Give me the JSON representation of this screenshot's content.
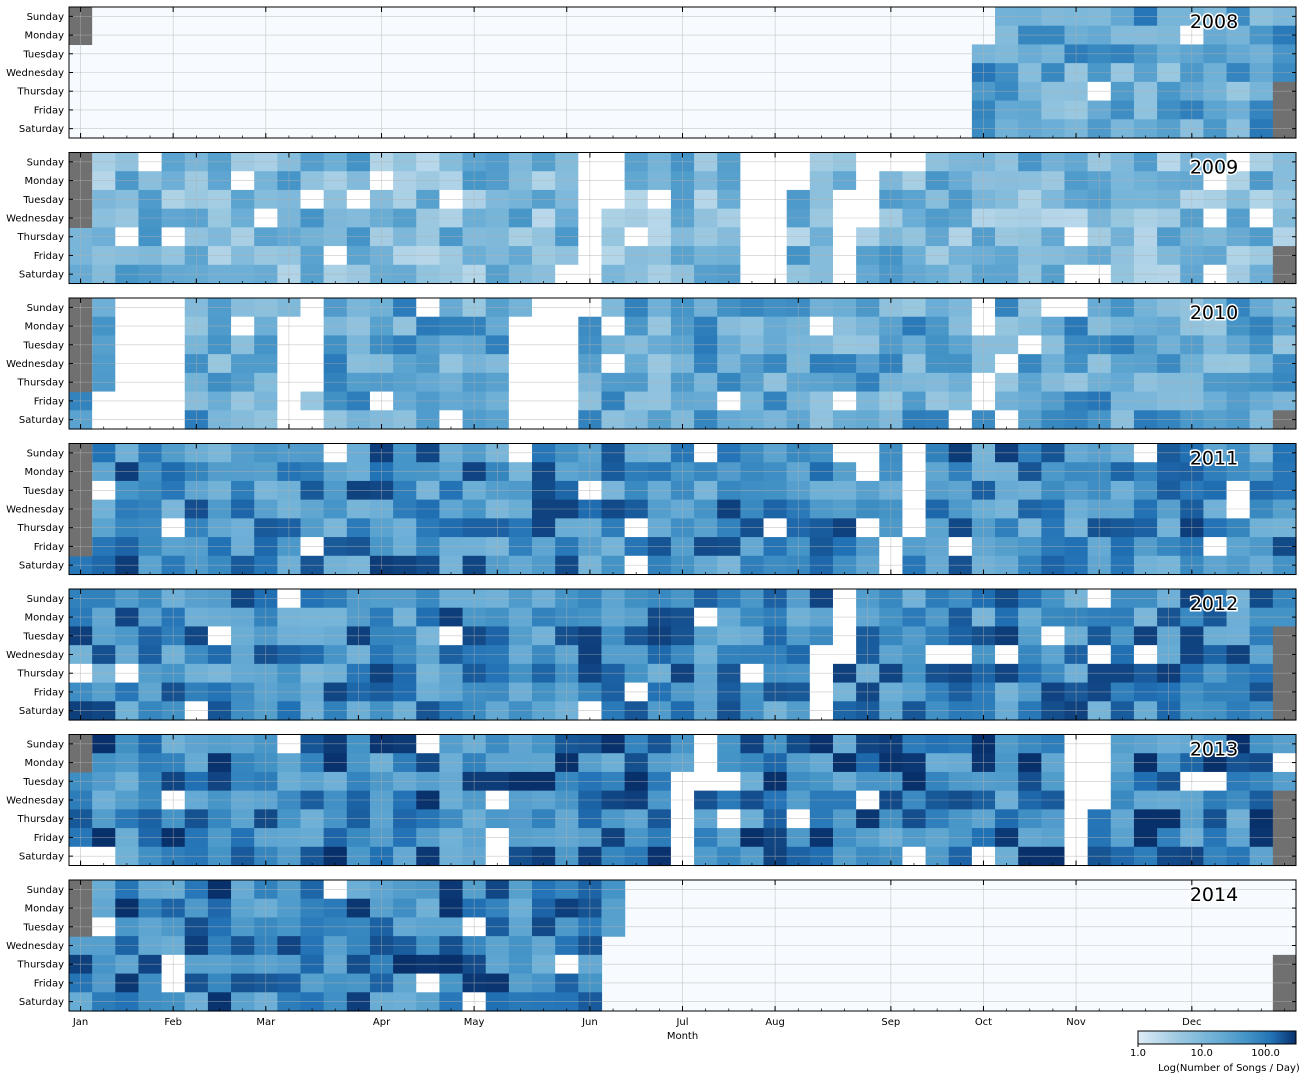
{
  "chart_data": {
    "type": "heatmap",
    "description_free": true,
    "years": [
      "2008",
      "2009",
      "2010",
      "2011",
      "2012",
      "2013",
      "2014"
    ],
    "ylabels": [
      "Sunday",
      "Monday",
      "Tuesday",
      "Wednesday",
      "Thursday",
      "Friday",
      "Saturday"
    ],
    "month_ticks": [
      "Jan",
      "Feb",
      "Mar",
      "Apr",
      "May",
      "Jun",
      "Jul",
      "Aug",
      "Sep",
      "Oct",
      "Nov",
      "Dec"
    ],
    "xlabel": "Month",
    "colorbar": {
      "label": "Log(Number of Songs / Day)",
      "ticks": [
        "1.0",
        "10.0",
        "100.0"
      ],
      "scale": "log",
      "range": [
        1,
        300
      ]
    },
    "panels": [
      {
        "year": "2008",
        "first_weekday": 2,
        "days": 366,
        "data_start_day": 274,
        "data_end_day": 366,
        "level": 0.55,
        "missing_day_blocks": []
      },
      {
        "year": "2009",
        "first_weekday": 4,
        "days": 365,
        "data_start_day": 1,
        "data_end_day": 365,
        "level": 0.42,
        "missing_day_blocks": [
          [
            150,
            160
          ],
          [
            200,
            215
          ],
          [
            230,
            238
          ]
        ]
      },
      {
        "year": "2010",
        "first_weekday": 5,
        "days": 365,
        "data_start_day": 1,
        "data_end_day": 365,
        "level": 0.55,
        "missing_day_blocks": [
          [
            8,
            30
          ],
          [
            60,
            70
          ],
          [
            130,
            150
          ]
        ]
      },
      {
        "year": "2011",
        "first_weekday": 6,
        "days": 365,
        "data_start_day": 1,
        "data_end_day": 365,
        "level": 0.7,
        "missing_day_blocks": [
          [
            245,
            251
          ]
        ]
      },
      {
        "year": "2012",
        "first_weekday": 0,
        "days": 366,
        "data_start_day": 1,
        "data_end_day": 366,
        "level": 0.7,
        "missing_day_blocks": [
          [
            228,
            235
          ]
        ]
      },
      {
        "year": "2013",
        "first_weekday": 2,
        "days": 365,
        "data_start_day": 1,
        "data_end_day": 365,
        "level": 0.75,
        "missing_day_blocks": [
          [
            183,
            190
          ],
          [
            300,
            310
          ]
        ]
      },
      {
        "year": "2014",
        "first_weekday": 3,
        "days": 365,
        "data_start_day": 1,
        "data_end_day": 161,
        "level": 0.75,
        "missing_day_blocks": []
      }
    ],
    "colors": {
      "empty": "#f7fbff",
      "low": "#deebf7",
      "mid": "#6baed6",
      "high": "#08306b",
      "outside_year": "#707070",
      "grid": "#b0b0b0"
    },
    "grid": true
  }
}
